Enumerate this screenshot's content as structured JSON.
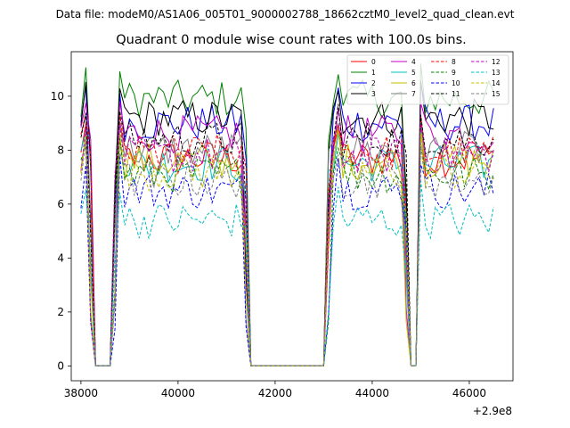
{
  "header": {
    "suptitle": "Data file: modeM0/AS1A06_005T01_9000002788_18662cztM0_level2_quad_clean.evt"
  },
  "chart_data": {
    "type": "line",
    "title": "Quadrant 0 module wise count rates with 100.0s bins.",
    "xlabel": "",
    "ylabel": "",
    "x_offset_label": "+2.9e8",
    "xlim": [
      37800,
      46900
    ],
    "ylim": [
      -0.55,
      11.65
    ],
    "xticks": [
      38000,
      40000,
      42000,
      44000,
      46000
    ],
    "xtick_labels": [
      "38000",
      "40000",
      "42000",
      "44000",
      "46000"
    ],
    "yticks": [
      0,
      2,
      4,
      6,
      8,
      10
    ],
    "ytick_labels": [
      "0",
      "2",
      "4",
      "6",
      "8",
      "10"
    ],
    "legend_position": "top-right",
    "legend_columns": 4,
    "x_values_note": "x = t - 2.9e8 seconds, 100 s bins",
    "x": [
      38000,
      38100,
      38200,
      38300,
      38400,
      38500,
      38600,
      38700,
      38800,
      38900,
      39000,
      39100,
      39200,
      39300,
      39400,
      39500,
      39600,
      39700,
      39800,
      39900,
      40000,
      40100,
      40200,
      40300,
      40400,
      40500,
      40600,
      40700,
      40800,
      40900,
      41000,
      41100,
      41200,
      41300,
      41400,
      41500,
      41600,
      41700,
      41800,
      41900,
      42000,
      42100,
      42200,
      42300,
      42400,
      42500,
      42600,
      42700,
      42800,
      42900,
      43000,
      43100,
      43200,
      43300,
      43400,
      43500,
      43600,
      43700,
      43800,
      43900,
      44000,
      44100,
      44200,
      44300,
      44400,
      44500,
      44600,
      44700,
      44800,
      44900,
      45000,
      45100,
      45200,
      45300,
      45400,
      45500,
      45600,
      45700,
      45800,
      45900,
      46000,
      46100,
      46200,
      46300,
      46400,
      46500
    ],
    "series": [
      {
        "name": "0",
        "color": "#ff0000",
        "dash": false,
        "level": 7.7
      },
      {
        "name": "1",
        "color": "#008000",
        "dash": false,
        "level": 9.9
      },
      {
        "name": "2",
        "color": "#0000ff",
        "dash": false,
        "level": 9.0
      },
      {
        "name": "3",
        "color": "#000000",
        "dash": false,
        "level": 9.2
      },
      {
        "name": "4",
        "color": "#c000c0",
        "dash": false,
        "level": 8.6
      },
      {
        "name": "5",
        "color": "#00bfbf",
        "dash": false,
        "level": 7.5
      },
      {
        "name": "6",
        "color": "#c0c000",
        "dash": false,
        "level": 7.6
      },
      {
        "name": "7",
        "color": "#808080",
        "dash": false,
        "level": 8.0
      },
      {
        "name": "8",
        "color": "#ff0000",
        "dash": true,
        "level": 7.9
      },
      {
        "name": "9",
        "color": "#008000",
        "dash": true,
        "level": 7.1
      },
      {
        "name": "10",
        "color": "#0000ff",
        "dash": true,
        "level": 6.5
      },
      {
        "name": "11",
        "color": "#000000",
        "dash": true,
        "level": 8.4
      },
      {
        "name": "12",
        "color": "#c000c0",
        "dash": true,
        "level": 7.8
      },
      {
        "name": "13",
        "color": "#00bfbf",
        "dash": true,
        "level": 5.4
      },
      {
        "name": "14",
        "color": "#c0c000",
        "dash": true,
        "level": 7.2
      },
      {
        "name": "15",
        "color": "#808080",
        "dash": true,
        "level": 6.9
      }
    ],
    "gaps": [
      [
        38300,
        38600
      ],
      [
        41500,
        43000
      ],
      [
        44800,
        44900
      ]
    ]
  }
}
